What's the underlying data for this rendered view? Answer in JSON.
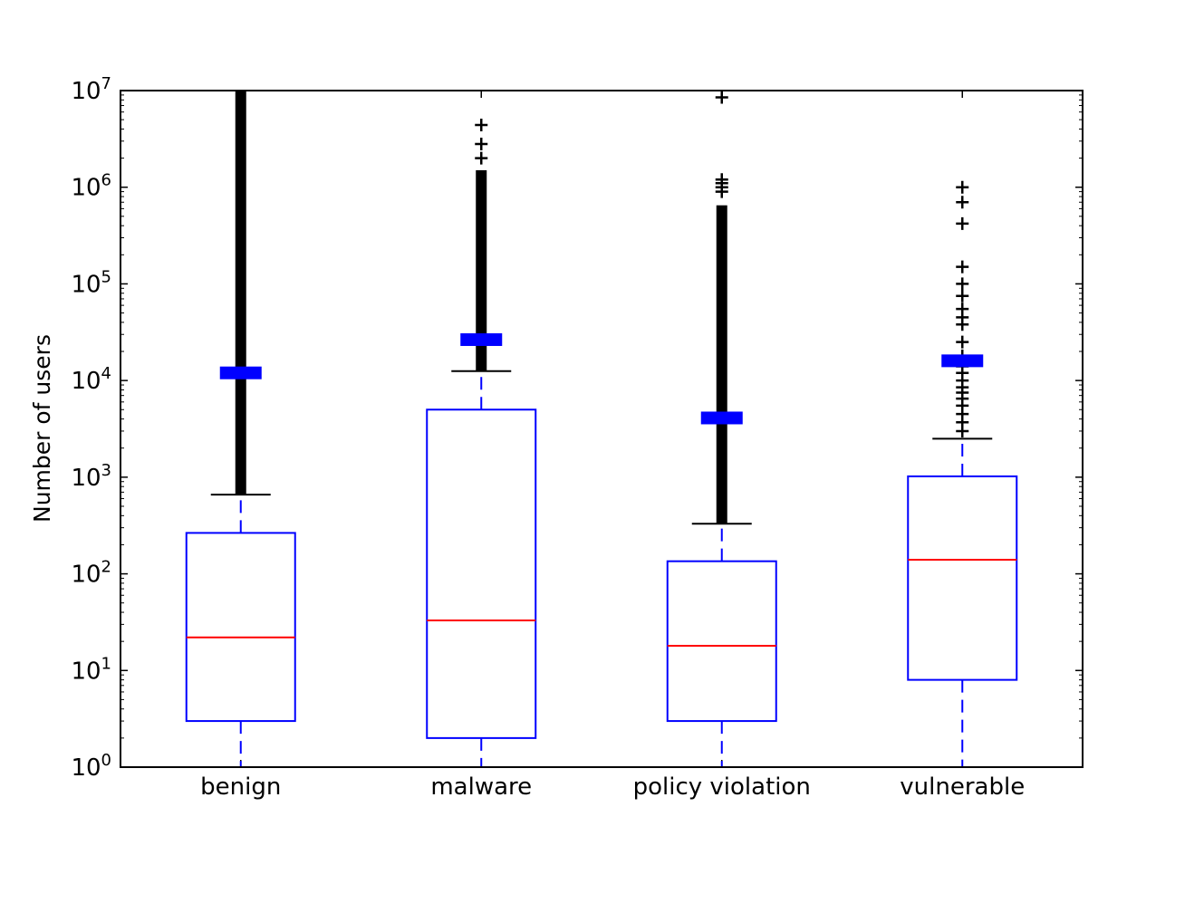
{
  "chart_data": {
    "type": "boxplot",
    "title": "",
    "xlabel": "",
    "ylabel": "Number of users",
    "yscale": "log",
    "ylim_exp": [
      0,
      7
    ],
    "ytick_base": "10",
    "ytick_exponents": [
      "0",
      "1",
      "2",
      "3",
      "4",
      "5",
      "6",
      "7"
    ],
    "categories": [
      "benign",
      "malware",
      "policy violation",
      "vulnerable"
    ],
    "boxes": [
      {
        "label": "benign",
        "whisker_low": 1,
        "q1": 3,
        "median": 22,
        "q3": 265,
        "whisker_high": 660,
        "mean": 12000,
        "outlier_band": [
          660,
          10000000
        ],
        "outliers": []
      },
      {
        "label": "malware",
        "whisker_low": 1,
        "q1": 2,
        "median": 33,
        "q3": 5000,
        "whisker_high": 12500,
        "mean": 26500,
        "outlier_band": [
          12500,
          1500000
        ],
        "outliers": [
          2000000,
          2800000,
          4400000
        ]
      },
      {
        "label": "policy violation",
        "whisker_low": 1,
        "q1": 3,
        "median": 18,
        "q3": 135,
        "whisker_high": 330,
        "mean": 4100,
        "outlier_band": [
          330,
          650000
        ],
        "outliers": [
          900000,
          1000000,
          1100000,
          1200000,
          8500000
        ]
      },
      {
        "label": "vulnerable",
        "whisker_low": 1,
        "q1": 8,
        "median": 140,
        "q3": 1020,
        "whisker_high": 2500,
        "mean": 16000,
        "outlier_band": [],
        "outliers": [
          3000,
          3700,
          4500,
          5500,
          6500,
          7500,
          8500,
          10000,
          12000,
          14000,
          18000,
          25000,
          38000,
          45000,
          55000,
          75000,
          100000,
          150000,
          420000,
          700000,
          1000000
        ]
      }
    ],
    "colors": {
      "box": "#0000ff",
      "median": "#ff0000",
      "whisker": "#0000ff",
      "cap": "#000000",
      "flier": "#000000",
      "mean": "#0000ff"
    }
  }
}
